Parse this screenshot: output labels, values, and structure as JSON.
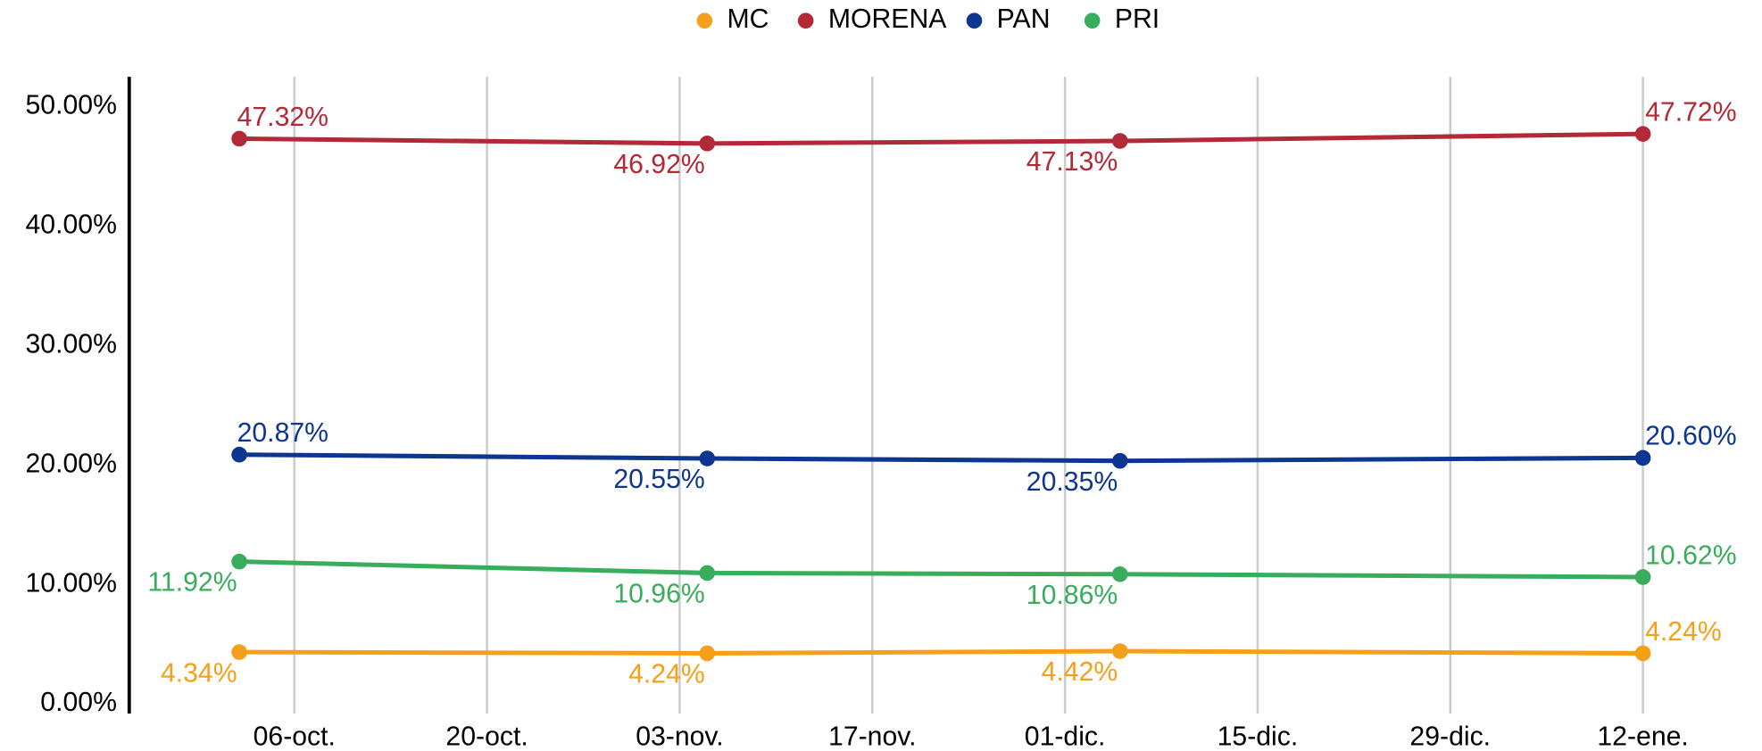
{
  "chart_data": {
    "type": "line",
    "x": [
      "10-02",
      "11-05",
      "12-05",
      "01-12"
    ],
    "xlim": [
      "09-24",
      "01-20"
    ],
    "xticks": [
      {
        "value": "10-06",
        "label": "06-oct."
      },
      {
        "value": "10-20",
        "label": "20-oct."
      },
      {
        "value": "11-03",
        "label": "03-nov."
      },
      {
        "value": "11-17",
        "label": "17-nov."
      },
      {
        "value": "12-01",
        "label": "01-dic."
      },
      {
        "value": "12-15",
        "label": "15-dic."
      },
      {
        "value": "12-29",
        "label": "29-dic."
      },
      {
        "value": "01-12",
        "label": "12-ene."
      }
    ],
    "ylim": [
      -0.8,
      52.5
    ],
    "yticks": [
      {
        "value": 0,
        "label": "0.00%"
      },
      {
        "value": 10,
        "label": "10.00%"
      },
      {
        "value": 20,
        "label": "20.00%"
      },
      {
        "value": 30,
        "label": "30.00%"
      },
      {
        "value": 40,
        "label": "40.00%"
      },
      {
        "value": 50,
        "label": "50.00%"
      }
    ],
    "grid": true,
    "legend": "top",
    "series": [
      {
        "name": "MC",
        "color": "#f5a01a",
        "values": [
          4.34,
          4.24,
          4.42,
          4.24
        ],
        "value_labels": [
          "4.34%",
          "4.24%",
          "4.42%",
          "4.24%"
        ]
      },
      {
        "name": "MORENA",
        "color": "#b22a36",
        "values": [
          47.32,
          46.92,
          47.13,
          47.72
        ],
        "value_labels": [
          "47.32%",
          "46.92%",
          "47.13%",
          "47.72%"
        ]
      },
      {
        "name": "PAN",
        "color": "#0c3690",
        "values": [
          20.87,
          20.55,
          20.35,
          20.6
        ],
        "value_labels": [
          "20.87%",
          "20.55%",
          "20.35%",
          "20.60%"
        ]
      },
      {
        "name": "PRI",
        "color": "#38ad5b",
        "values": [
          11.92,
          10.96,
          10.86,
          10.62
        ],
        "value_labels": [
          "11.92%",
          "10.96%",
          "10.86%",
          "10.62%"
        ]
      }
    ]
  }
}
